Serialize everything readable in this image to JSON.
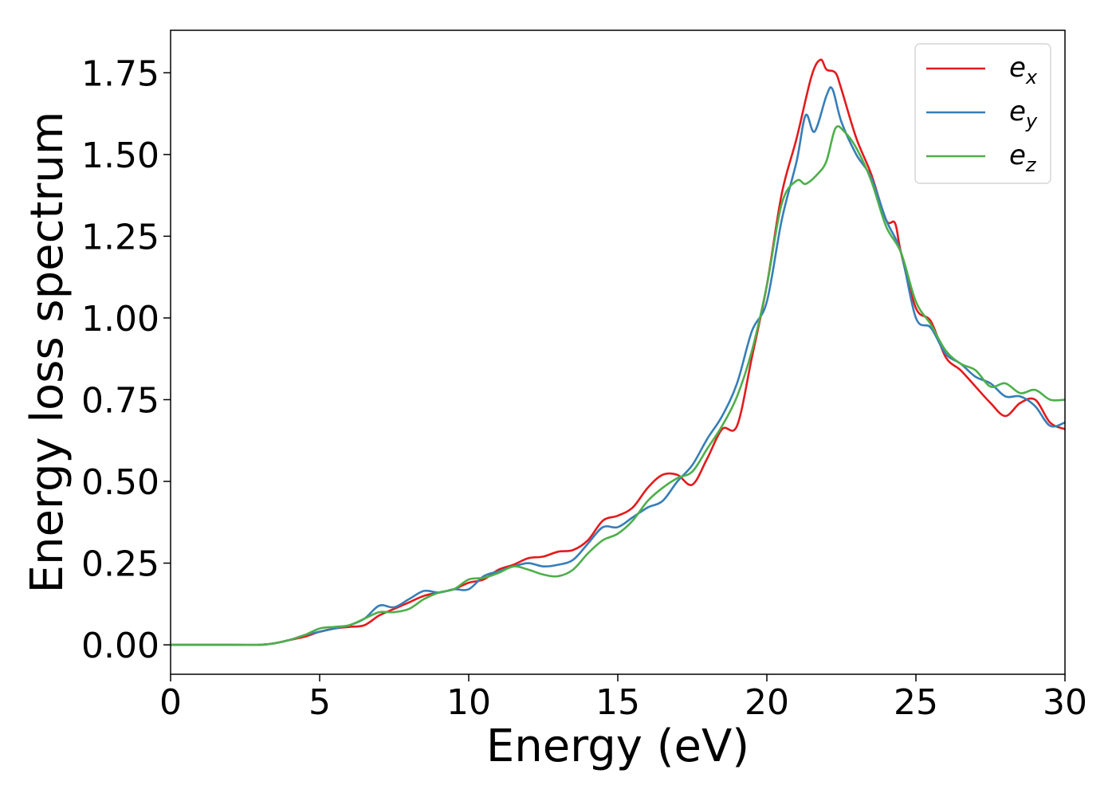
{
  "chart_data": {
    "type": "line",
    "xlabel": "Energy (eV)",
    "ylabel": "Energy loss spectrum",
    "xlim": [
      0,
      30
    ],
    "ylim": [
      -0.09,
      1.88
    ],
    "xticks": [
      0,
      5,
      10,
      15,
      20,
      25,
      30
    ],
    "xtick_labels": [
      "0",
      "5",
      "10",
      "15",
      "20",
      "25",
      "30"
    ],
    "yticks": [
      0.0,
      0.25,
      0.5,
      0.75,
      1.0,
      1.25,
      1.5,
      1.75
    ],
    "ytick_labels": [
      "0.00",
      "0.25",
      "0.50",
      "0.75",
      "1.00",
      "1.25",
      "1.50",
      "1.75"
    ],
    "grid": false,
    "legend_position": "top-right",
    "series": [
      {
        "name": "e_x",
        "legend_base": "e",
        "legend_sub": "x",
        "color": "#e41a1c",
        "x": [
          0,
          2,
          3,
          3.5,
          4,
          4.5,
          5,
          5.5,
          6,
          6.5,
          7,
          7.5,
          8,
          8.5,
          9,
          9.5,
          10,
          10.5,
          11,
          11.5,
          12,
          12.5,
          13,
          13.5,
          14,
          14.5,
          15,
          15.5,
          16,
          16.5,
          17,
          17.5,
          18,
          18.5,
          19,
          19.5,
          20,
          20.5,
          21,
          21.5,
          21.8,
          22,
          22.3,
          22.5,
          23,
          23.5,
          24,
          24.3,
          24.5,
          25,
          25.5,
          26,
          26.5,
          27,
          27.5,
          28,
          28.5,
          29,
          29.5,
          30
        ],
        "y": [
          0.0,
          0.0,
          0.0,
          0.005,
          0.015,
          0.025,
          0.04,
          0.05,
          0.055,
          0.06,
          0.09,
          0.11,
          0.13,
          0.15,
          0.16,
          0.17,
          0.19,
          0.2,
          0.23,
          0.245,
          0.265,
          0.27,
          0.285,
          0.29,
          0.32,
          0.38,
          0.395,
          0.42,
          0.48,
          0.52,
          0.52,
          0.49,
          0.57,
          0.66,
          0.67,
          0.88,
          1.1,
          1.38,
          1.55,
          1.74,
          1.79,
          1.76,
          1.75,
          1.7,
          1.55,
          1.44,
          1.3,
          1.29,
          1.2,
          1.03,
          0.99,
          0.88,
          0.84,
          0.79,
          0.74,
          0.7,
          0.74,
          0.75,
          0.68,
          0.66
        ]
      },
      {
        "name": "e_y",
        "legend_base": "e",
        "legend_sub": "y",
        "color": "#377eb8",
        "x": [
          0,
          2,
          3,
          3.5,
          4,
          4.5,
          5,
          5.5,
          6,
          6.5,
          7,
          7.5,
          8,
          8.5,
          9,
          9.5,
          10,
          10.5,
          11,
          11.5,
          12,
          12.5,
          13,
          13.5,
          14,
          14.5,
          15,
          15.5,
          16,
          16.5,
          17,
          17.5,
          18,
          18.5,
          19,
          19.5,
          20,
          20.5,
          21,
          21.3,
          21.6,
          22,
          22.2,
          22.5,
          23,
          23.5,
          24,
          24.5,
          25,
          25.5,
          26,
          26.5,
          27,
          27.5,
          28,
          28.5,
          29,
          29.5,
          30
        ],
        "y": [
          0.0,
          0.0,
          0.0,
          0.005,
          0.015,
          0.03,
          0.04,
          0.05,
          0.06,
          0.08,
          0.12,
          0.115,
          0.14,
          0.165,
          0.16,
          0.17,
          0.17,
          0.21,
          0.225,
          0.24,
          0.25,
          0.24,
          0.245,
          0.26,
          0.31,
          0.36,
          0.36,
          0.39,
          0.42,
          0.44,
          0.5,
          0.55,
          0.63,
          0.7,
          0.8,
          0.96,
          1.05,
          1.3,
          1.48,
          1.62,
          1.57,
          1.68,
          1.7,
          1.6,
          1.5,
          1.43,
          1.3,
          1.2,
          1.0,
          0.97,
          0.89,
          0.86,
          0.82,
          0.8,
          0.76,
          0.76,
          0.73,
          0.67,
          0.68
        ]
      },
      {
        "name": "e_z",
        "legend_base": "e",
        "legend_sub": "z",
        "color": "#4daf4a",
        "x": [
          0,
          2,
          3,
          3.5,
          4,
          4.5,
          5,
          5.5,
          6,
          6.5,
          7,
          7.5,
          8,
          8.5,
          9,
          9.5,
          10,
          10.5,
          11,
          11.5,
          12,
          12.5,
          13,
          13.5,
          14,
          14.5,
          15,
          15.5,
          16,
          16.5,
          17,
          17.5,
          18,
          18.5,
          19,
          19.5,
          20,
          20.5,
          21,
          21.3,
          21.7,
          22,
          22.3,
          22.6,
          23,
          23.5,
          24,
          24.5,
          25,
          25.5,
          26,
          26.5,
          27,
          27.5,
          28,
          28.5,
          29,
          29.5,
          30
        ],
        "y": [
          0.0,
          0.0,
          0.0,
          0.005,
          0.015,
          0.03,
          0.05,
          0.055,
          0.06,
          0.08,
          0.1,
          0.1,
          0.11,
          0.14,
          0.16,
          0.17,
          0.2,
          0.205,
          0.22,
          0.24,
          0.23,
          0.215,
          0.21,
          0.23,
          0.28,
          0.32,
          0.34,
          0.38,
          0.44,
          0.48,
          0.51,
          0.53,
          0.6,
          0.67,
          0.76,
          0.9,
          1.1,
          1.35,
          1.42,
          1.41,
          1.44,
          1.48,
          1.58,
          1.57,
          1.52,
          1.42,
          1.28,
          1.2,
          1.05,
          0.98,
          0.9,
          0.86,
          0.84,
          0.79,
          0.8,
          0.77,
          0.78,
          0.75,
          0.75
        ]
      }
    ]
  }
}
